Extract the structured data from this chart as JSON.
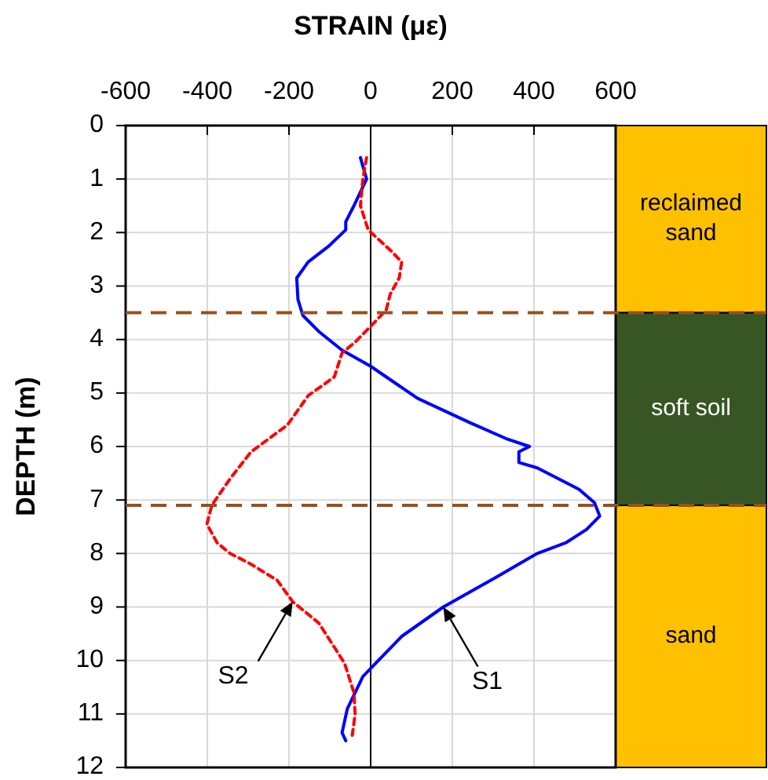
{
  "chart_data": [
    {
      "type": "line",
      "xlabel": "STRAIN (με)",
      "ylabel": "DEPTH (m)",
      "xlim": [
        -600,
        600
      ],
      "xticks": [
        -600,
        -400,
        -200,
        0,
        200,
        400,
        600
      ],
      "ylim": [
        12,
        0
      ],
      "yticks": [
        0,
        1,
        2,
        3,
        4,
        5,
        6,
        7,
        8,
        9,
        10,
        11,
        12
      ],
      "grid": true,
      "marker": "none",
      "series": [
        {
          "color": "#0000ff",
          "line_style": "solid",
          "x": [
            -25,
            -10,
            -41,
            -61,
            -61,
            -102,
            -153,
            -181,
            -178,
            -166,
            -127,
            -70,
            0,
            115,
            242,
            331,
            389,
            363,
            363,
            408,
            510,
            548,
            561,
            529,
            478,
            408,
            306,
            178,
            76,
            19,
            -19,
            -38,
            -57,
            -70,
            -61
          ],
          "values": [
            0.6,
            1.0,
            1.5,
            1.8,
            1.95,
            2.25,
            2.55,
            2.85,
            3.25,
            3.55,
            3.85,
            4.2,
            4.5,
            5.1,
            5.55,
            5.85,
            6.0,
            6.1,
            6.3,
            6.4,
            6.8,
            7.05,
            7.3,
            7.55,
            7.8,
            8.0,
            8.45,
            9.0,
            9.55,
            10.0,
            10.3,
            10.6,
            10.9,
            11.35,
            11.5
          ]
        },
        {
          "color": "#ff0000",
          "line_style": "dotted",
          "x": [
            -10,
            -19,
            -25,
            -6,
            51,
            76,
            70,
            48,
            38,
            13,
            -38,
            -70,
            -89,
            -153,
            -204,
            -293,
            -344,
            -389,
            -401,
            -376,
            -344,
            -293,
            -229,
            -191,
            -127,
            -64,
            -41,
            -38,
            -45
          ],
          "values": [
            0.6,
            1.0,
            1.5,
            1.95,
            2.35,
            2.55,
            2.85,
            3.15,
            3.45,
            3.65,
            4.05,
            4.25,
            4.7,
            5.05,
            5.6,
            6.1,
            6.6,
            7.1,
            7.45,
            7.8,
            8.0,
            8.2,
            8.5,
            8.9,
            9.3,
            10.05,
            10.6,
            11.0,
            11.4
          ]
        }
      ],
      "ref_lines": [
        {
          "axis": "y",
          "value": 3.5,
          "color": "#99501c",
          "line_style": "dashed"
        },
        {
          "axis": "y",
          "value": 7.1,
          "color": "#99501c",
          "line_style": "dashed"
        }
      ],
      "annotations": [
        {
          "text": "S1",
          "x": 178,
          "y": 9.0
        },
        {
          "text": "S2",
          "x": -191,
          "y": 8.9
        }
      ]
    },
    {
      "type": "bar",
      "stacked": true,
      "categories": [
        null
      ],
      "ylim": [
        12,
        0
      ],
      "series": [
        {
          "name": "reclaimed sand",
          "color": "#ffc000",
          "values": [
            3.5
          ]
        },
        {
          "name": "soft soil",
          "color": "#375623",
          "values": [
            3.6
          ]
        },
        {
          "name": "sand",
          "color": "#ffc000",
          "values": [
            4.9
          ]
        }
      ]
    }
  ]
}
